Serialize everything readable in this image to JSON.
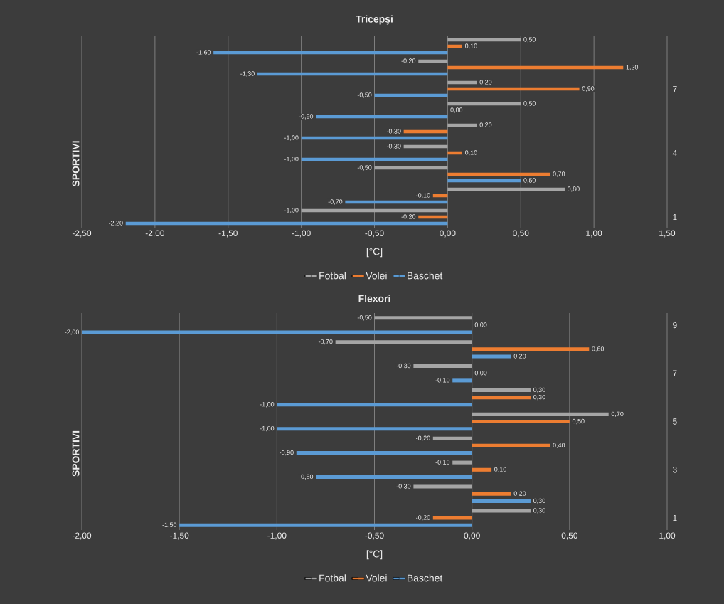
{
  "chart_data": [
    {
      "type": "bar",
      "orientation": "horizontal",
      "title": "Tricepşi",
      "xlabel": "[°C]",
      "ylabel": "SPORTIVI",
      "grid": "x",
      "legend": "bottom",
      "categories": [
        null,
        null,
        "7",
        null,
        null,
        "4",
        null,
        null,
        "1"
      ],
      "xlim": [
        -2.5,
        1.5
      ],
      "xticks": [
        {
          "value": -2.5,
          "label": "-2,50"
        },
        {
          "value": -2.0,
          "label": "-2,00"
        },
        {
          "value": -1.5,
          "label": "-1,50"
        },
        {
          "value": -1.0,
          "label": "-1,00"
        },
        {
          "value": -0.5,
          "label": "-0,50"
        },
        {
          "value": 0,
          "label": "0,00"
        },
        {
          "value": 0.5,
          "label": "0,50"
        },
        {
          "value": 1.0,
          "label": "1,00"
        },
        {
          "value": 1.5,
          "label": "1,50"
        }
      ],
      "series": [
        {
          "name": "Fotbal",
          "color": "#a5a5a5",
          "values": [
            0.5,
            -0.2,
            0.2,
            0.5,
            0.2,
            -0.3,
            -0.5,
            0.8,
            -1.0
          ],
          "value_labels": [
            "0,50",
            "-0,20",
            "0,20",
            "0,50",
            "0,20",
            "-0,30",
            "-0,50",
            "0,80",
            "-1,00"
          ]
        },
        {
          "name": "Volei",
          "color": "#ed7d31",
          "values": [
            0.1,
            1.2,
            0.9,
            0.0,
            -0.3,
            0.1,
            0.7,
            -0.1,
            -0.2
          ],
          "value_labels": [
            "0,10",
            "1,20",
            "0,90",
            "0,00",
            "-0,30",
            "0,10",
            "0,70",
            "-0,10",
            "-0,20"
          ]
        },
        {
          "name": "Baschet",
          "color": "#5b9bd5",
          "values": [
            -1.6,
            -1.3,
            -0.5,
            -0.9,
            -1.0,
            -1.0,
            0.5,
            -0.7,
            -2.2
          ],
          "value_labels": [
            "-1,60",
            "-1,30",
            "-0,50",
            "-0,90",
            "-1,00",
            "-1,00",
            "0,50",
            "-0,70",
            "-2,20"
          ]
        }
      ]
    },
    {
      "type": "bar",
      "orientation": "horizontal",
      "title": "Flexori",
      "xlabel": "[°C]",
      "ylabel": "SPORTIVI",
      "grid": "x",
      "legend": "bottom",
      "categories": [
        "9",
        null,
        "7",
        null,
        "5",
        null,
        "3",
        null,
        "1"
      ],
      "xlim": [
        -2.0,
        1.0
      ],
      "xticks": [
        {
          "value": -2.0,
          "label": "-2,00"
        },
        {
          "value": -1.5,
          "label": "-1,50"
        },
        {
          "value": -1.0,
          "label": "-1,00"
        },
        {
          "value": -0.5,
          "label": "-0,50"
        },
        {
          "value": 0,
          "label": "0,00"
        },
        {
          "value": 0.5,
          "label": "0,50"
        },
        {
          "value": 1.0,
          "label": "1,00"
        }
      ],
      "series": [
        {
          "name": "Fotbal",
          "color": "#a5a5a5",
          "values": [
            -0.5,
            -0.7,
            -0.3,
            0.3,
            0.7,
            -0.2,
            -0.1,
            -0.3,
            0.3
          ],
          "value_labels": [
            "-0,50",
            "-0,70",
            "-0,30",
            "0,30",
            "0,70",
            "-0,20",
            "-0,10",
            "-0,30",
            "0,30"
          ]
        },
        {
          "name": "Volei",
          "color": "#ed7d31",
          "values": [
            0.0,
            0.6,
            0.0,
            0.3,
            0.5,
            0.4,
            0.1,
            0.2,
            -0.2
          ],
          "value_labels": [
            "0,00",
            "0,60",
            "0,00",
            "0,30",
            "0,50",
            "0,40",
            "0,10",
            "0,20",
            "-0,20"
          ]
        },
        {
          "name": "Baschet",
          "color": "#5b9bd5",
          "values": [
            -2.0,
            0.2,
            -0.1,
            -1.0,
            -1.0,
            -0.9,
            -0.8,
            0.3,
            -1.5
          ],
          "value_labels": [
            "-2,00",
            "0,20",
            "-0,10",
            "-1,00",
            "-1,00",
            "-0,90",
            "-0,80",
            "0,30",
            "-1,50"
          ]
        }
      ]
    }
  ]
}
